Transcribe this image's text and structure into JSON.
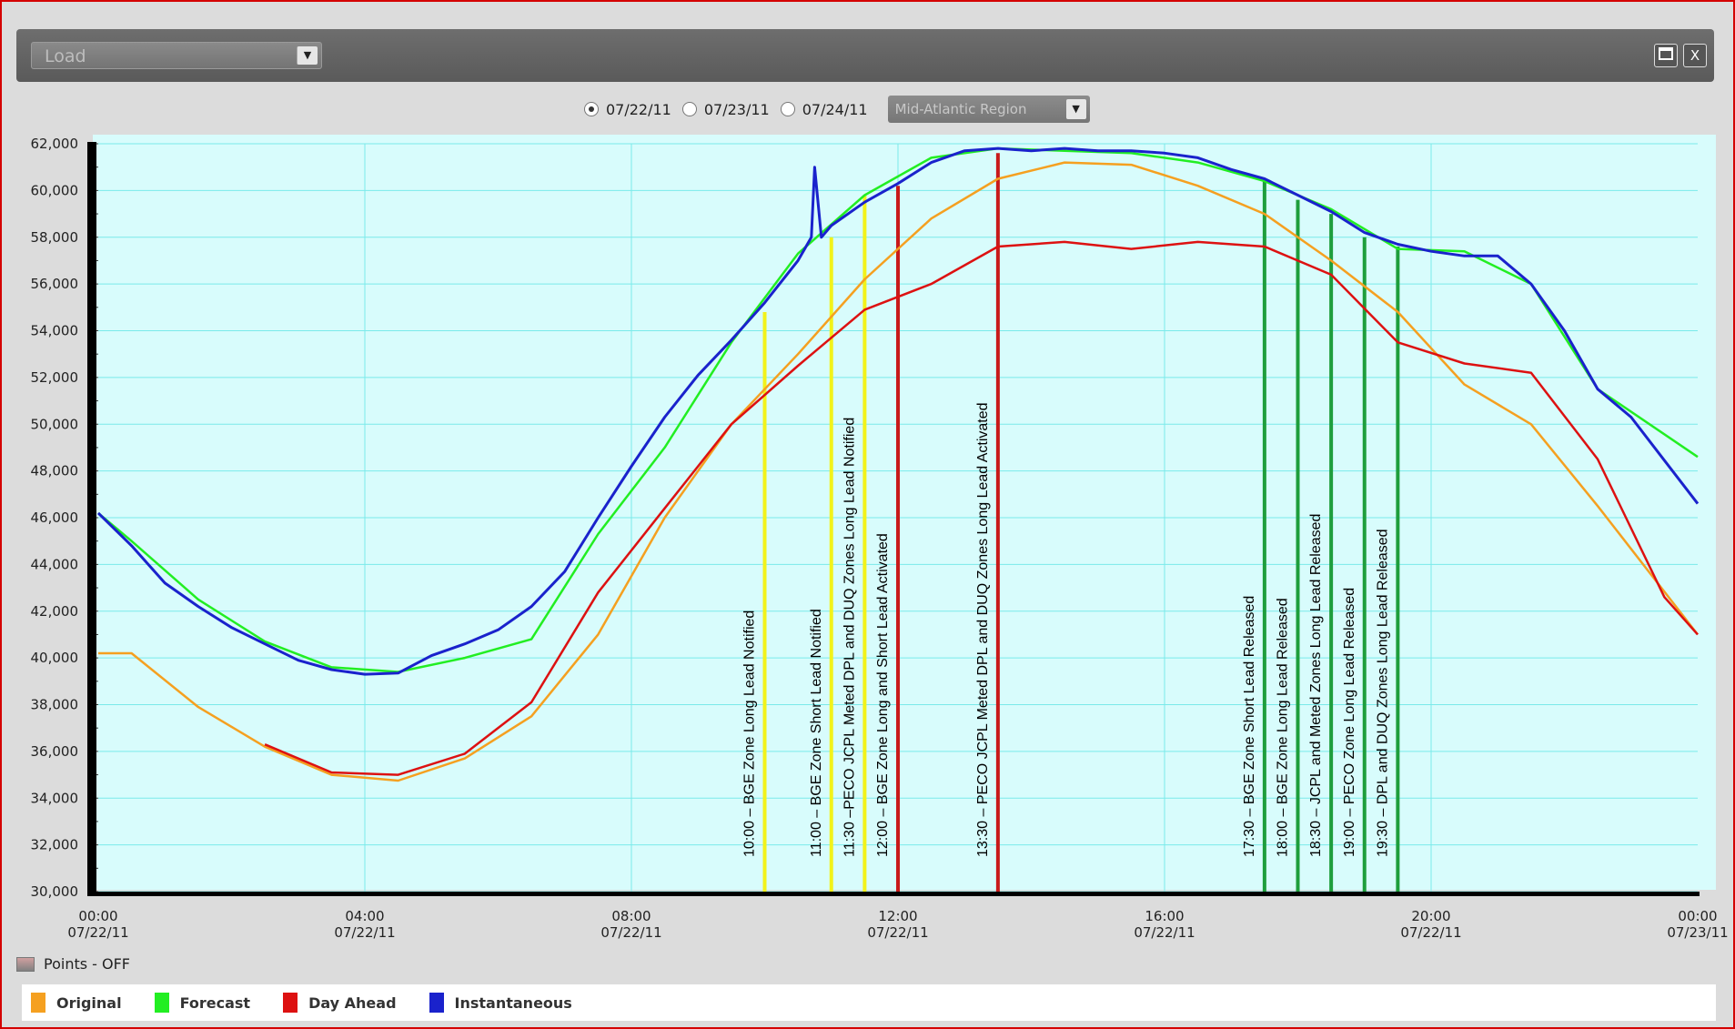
{
  "header": {
    "dataset_value": "Load"
  },
  "dates": [
    {
      "label": "07/22/11",
      "selected": true
    },
    {
      "label": "07/23/11",
      "selected": false
    },
    {
      "label": "07/24/11",
      "selected": false
    }
  ],
  "region_value": "Mid-Atlantic Region",
  "points_label": "Points - OFF",
  "chart_data": {
    "type": "line",
    "ylim": [
      30000,
      62000
    ],
    "yticks": [
      30000,
      32000,
      34000,
      36000,
      38000,
      40000,
      42000,
      44000,
      46000,
      48000,
      50000,
      52000,
      54000,
      56000,
      58000,
      60000,
      62000
    ],
    "ytick_labels": [
      "30,000",
      "32,000",
      "34,000",
      "36,000",
      "38,000",
      "40,000",
      "42,000",
      "44,000",
      "46,000",
      "48,000",
      "50,000",
      "52,000",
      "54,000",
      "56,000",
      "58,000",
      "60,000",
      "62,000"
    ],
    "xlim_hours": [
      0,
      24
    ],
    "xticks": [
      {
        "hour": 0,
        "time": "00:00",
        "date": "07/22/11"
      },
      {
        "hour": 4,
        "time": "04:00",
        "date": "07/22/11"
      },
      {
        "hour": 8,
        "time": "08:00",
        "date": "07/22/11"
      },
      {
        "hour": 12,
        "time": "12:00",
        "date": "07/22/11"
      },
      {
        "hour": 16,
        "time": "16:00",
        "date": "07/22/11"
      },
      {
        "hour": 20,
        "time": "20:00",
        "date": "07/22/11"
      },
      {
        "hour": 24,
        "time": "00:00",
        "date": "07/23/11"
      }
    ],
    "series": [
      {
        "name": "Original",
        "color": "#f5a020",
        "points": [
          [
            0,
            40200
          ],
          [
            0.5,
            40200
          ],
          [
            1.5,
            37900
          ],
          [
            2.5,
            36200
          ],
          [
            3.5,
            35000
          ],
          [
            4.5,
            34750
          ],
          [
            5.5,
            35700
          ],
          [
            6.5,
            37500
          ],
          [
            7.5,
            41000
          ],
          [
            8.5,
            46000
          ],
          [
            9.5,
            50000
          ],
          [
            10.5,
            53000
          ],
          [
            11.5,
            56200
          ],
          [
            12.5,
            58800
          ],
          [
            13.5,
            60500
          ],
          [
            14.5,
            61200
          ],
          [
            15.5,
            61100
          ],
          [
            16.5,
            60200
          ],
          [
            17.5,
            59000
          ],
          [
            18.5,
            57000
          ],
          [
            19.5,
            54800
          ],
          [
            20.5,
            51700
          ],
          [
            21.5,
            50000
          ],
          [
            22.5,
            46500
          ],
          [
            24,
            41000
          ]
        ]
      },
      {
        "name": "Forecast",
        "color": "#22ee22",
        "points": [
          [
            0,
            46200
          ],
          [
            0.5,
            45000
          ],
          [
            1.5,
            42500
          ],
          [
            2.5,
            40700
          ],
          [
            3.5,
            39600
          ],
          [
            4.5,
            39400
          ],
          [
            5.5,
            40000
          ],
          [
            6.5,
            40800
          ],
          [
            7.5,
            45300
          ],
          [
            8.5,
            49000
          ],
          [
            9.5,
            53500
          ],
          [
            10.5,
            57300
          ],
          [
            11.5,
            59800
          ],
          [
            12.5,
            61400
          ],
          [
            13.5,
            61800
          ],
          [
            14.5,
            61700
          ],
          [
            15.5,
            61600
          ],
          [
            16.5,
            61200
          ],
          [
            17.5,
            60400
          ],
          [
            18.5,
            59200
          ],
          [
            19.5,
            57500
          ],
          [
            20.5,
            57400
          ],
          [
            21.5,
            56000
          ],
          [
            22.5,
            51500
          ],
          [
            24,
            48600
          ]
        ]
      },
      {
        "name": "Day Ahead",
        "color": "#dd1111",
        "points": [
          [
            2.5,
            36300
          ],
          [
            3.5,
            35100
          ],
          [
            4.5,
            35000
          ],
          [
            5.5,
            35900
          ],
          [
            6.5,
            38100
          ],
          [
            7.5,
            42800
          ],
          [
            8.5,
            46400
          ],
          [
            9.5,
            50000
          ],
          [
            10.5,
            52500
          ],
          [
            11.5,
            54900
          ],
          [
            12.5,
            56000
          ],
          [
            13.5,
            57600
          ],
          [
            14.5,
            57800
          ],
          [
            15.5,
            57500
          ],
          [
            16.5,
            57800
          ],
          [
            17.5,
            57600
          ],
          [
            18.5,
            56400
          ],
          [
            19.5,
            53500
          ],
          [
            20.5,
            52600
          ],
          [
            21.5,
            52200
          ],
          [
            22.5,
            48500
          ],
          [
            23.5,
            42600
          ],
          [
            24,
            41000
          ]
        ]
      },
      {
        "name": "Instantaneous",
        "color": "#1a22cc",
        "points": [
          [
            0,
            46200
          ],
          [
            0.5,
            44800
          ],
          [
            1,
            43200
          ],
          [
            1.5,
            42200
          ],
          [
            2,
            41300
          ],
          [
            2.5,
            40600
          ],
          [
            3,
            39900
          ],
          [
            3.5,
            39500
          ],
          [
            4,
            39300
          ],
          [
            4.5,
            39350
          ],
          [
            5,
            40100
          ],
          [
            5.5,
            40600
          ],
          [
            6,
            41200
          ],
          [
            6.5,
            42200
          ],
          [
            7,
            43700
          ],
          [
            7.5,
            46000
          ],
          [
            8,
            48200
          ],
          [
            8.5,
            50300
          ],
          [
            9,
            52100
          ],
          [
            9.5,
            53600
          ],
          [
            10,
            55200
          ],
          [
            10.5,
            57000
          ],
          [
            10.7,
            58000
          ],
          [
            10.75,
            61000
          ],
          [
            10.85,
            58000
          ],
          [
            11,
            58500
          ],
          [
            11.5,
            59500
          ],
          [
            12,
            60300
          ],
          [
            12.5,
            61200
          ],
          [
            13,
            61700
          ],
          [
            13.5,
            61800
          ],
          [
            14,
            61700
          ],
          [
            14.5,
            61800
          ],
          [
            15,
            61700
          ],
          [
            15.5,
            61700
          ],
          [
            16,
            61600
          ],
          [
            16.5,
            61400
          ],
          [
            17,
            60900
          ],
          [
            17.5,
            60500
          ],
          [
            18,
            59800
          ],
          [
            18.5,
            59100
          ],
          [
            19,
            58200
          ],
          [
            19.5,
            57700
          ],
          [
            20,
            57400
          ],
          [
            20.5,
            57200
          ],
          [
            21,
            57200
          ],
          [
            21.5,
            56000
          ],
          [
            22,
            54000
          ],
          [
            22.5,
            51500
          ],
          [
            23,
            50300
          ],
          [
            24,
            46600
          ]
        ]
      }
    ],
    "annotations": [
      {
        "hour": 10.0,
        "top": 54800,
        "color": "#f2f21a",
        "label": "10:00 – BGE Zone Long Lead Notified"
      },
      {
        "hour": 11.0,
        "top": 58000,
        "color": "#f2f21a",
        "label": "11:00 – BGE Zone Short Lead Notified"
      },
      {
        "hour": 11.5,
        "top": 59800,
        "color": "#f2f21a",
        "label": "11:30 –PECO JCPL Meted DPL and DUQ  Zones Long Lead  Notified"
      },
      {
        "hour": 12.0,
        "top": 60200,
        "color": "#c81a1a",
        "label": "12:00 – BGE Zone Long and Short Lead Activated"
      },
      {
        "hour": 13.5,
        "top": 61600,
        "color": "#c81a1a",
        "label": "13:30 – PECO JCPL Meted DPL  and DUQ Zones Long Lead Activated"
      },
      {
        "hour": 17.5,
        "top": 60500,
        "color": "#1e9e3c",
        "label": "17:30 – BGE Zone Short Lead Released"
      },
      {
        "hour": 18.0,
        "top": 59600,
        "color": "#1e9e3c",
        "label": "18:00 – BGE Zone Long Lead Released"
      },
      {
        "hour": 18.5,
        "top": 59000,
        "color": "#1e9e3c",
        "label": "18:30 – JCPL and Meted Zones Long Lead Released"
      },
      {
        "hour": 19.0,
        "top": 58000,
        "color": "#1e9e3c",
        "label": "19:00 – PECO Zone Long Lead Released"
      },
      {
        "hour": 19.5,
        "top": 57600,
        "color": "#1e9e3c",
        "label": "19:30 – DPL and DUQ Zones Long Lead Released"
      }
    ],
    "legend": [
      {
        "name": "Original",
        "color": "#f5a020"
      },
      {
        "name": "Forecast",
        "color": "#22ee22"
      },
      {
        "name": "Day Ahead",
        "color": "#dd1111"
      },
      {
        "name": "Instantaneous",
        "color": "#1a22cc"
      }
    ],
    "grid": true,
    "legend_position": "bottom-left"
  }
}
